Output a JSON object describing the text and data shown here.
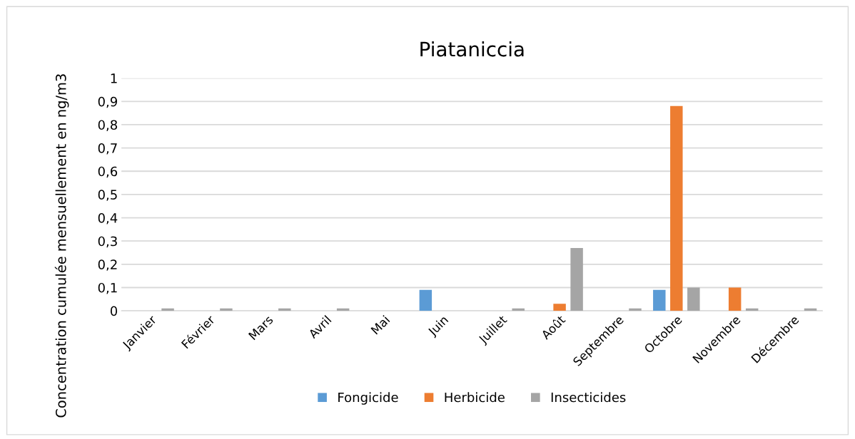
{
  "chart_data": {
    "type": "bar",
    "title": "Piataniccia",
    "ylabel": "Concentration cumulée mensuellement en ng/m3",
    "categories": [
      "Janvier",
      "Février",
      "Mars",
      "Avril",
      "Mai",
      "Juin",
      "Juillet",
      "Août",
      "Septembre",
      "Octobre",
      "Novembre",
      "Décembre"
    ],
    "series": [
      {
        "name": "Fongicide",
        "color": "#5b9bd5",
        "values": [
          0,
          0,
          0,
          0,
          0,
          0.09,
          0,
          0,
          0,
          0.09,
          0,
          0
        ]
      },
      {
        "name": "Herbicide",
        "color": "#ed7d31",
        "values": [
          0,
          0,
          0,
          0,
          0,
          0,
          0,
          0.03,
          0,
          0.88,
          0.1,
          0
        ]
      },
      {
        "name": "Insecticides",
        "color": "#a5a5a5",
        "values": [
          0.01,
          0.01,
          0.01,
          0.01,
          0,
          0,
          0.01,
          0.27,
          0.01,
          0.1,
          0.01,
          0.01
        ]
      }
    ],
    "ylim": [
      0,
      1
    ],
    "yticks": [
      0,
      {
        "value": 0.1,
        "label": "0,1"
      },
      {
        "value": 0.2,
        "label": "0,2"
      },
      {
        "value": 0.3,
        "label": "0,3"
      },
      {
        "value": 0.4,
        "label": "0,4"
      },
      {
        "value": 0.5,
        "label": "0,5"
      },
      {
        "value": 0.6,
        "label": "0,6"
      },
      {
        "value": 0.7,
        "label": "0,7"
      },
      {
        "value": 0.8,
        "label": "0,8"
      },
      {
        "value": 0.9,
        "label": "0,9"
      },
      1
    ],
    "grid": "y",
    "legend": "bottom"
  }
}
